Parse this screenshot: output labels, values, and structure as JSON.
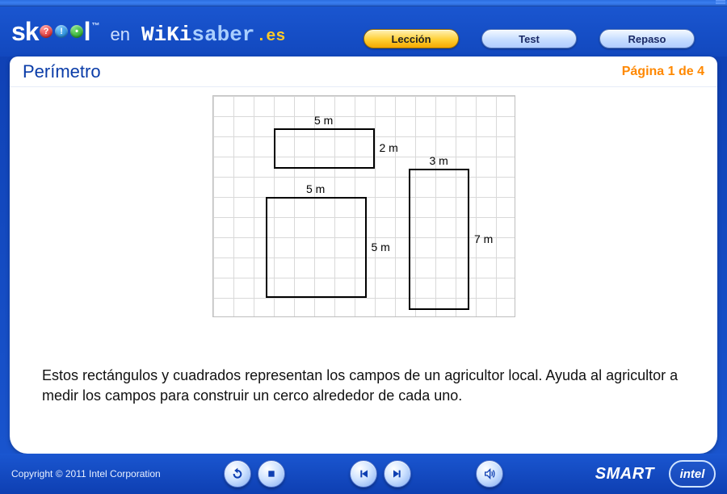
{
  "header": {
    "brand_sk": "sk",
    "brand_l_tail": "l",
    "brand_tm": "™",
    "brand_en": "en",
    "brand_wiki": "WiKi",
    "brand_saber": "saber",
    "brand_es": ".es",
    "dots": [
      "?",
      "!",
      "•"
    ]
  },
  "tabs": {
    "lesson": "Lección",
    "test": "Test",
    "review": "Repaso",
    "active": "lesson"
  },
  "page": {
    "title": "Perímetro",
    "indicator": "Página 1 de 4",
    "body": "Estos rectángulos y cuadrados representan los campos de un agricultor local. Ayuda al agricultor a medir los campos para construir un cerco alrededor de cada uno."
  },
  "figure": {
    "cell": 25,
    "cols": 15,
    "rows": 11,
    "grid_line_color": "#d9d9d9",
    "border_color": "#bfbfbf",
    "shape_border": "#000000",
    "shapes": {
      "rect1": {
        "col": 3,
        "row": 1.6,
        "w": 5,
        "h": 2,
        "label_top": "5 m",
        "label_right": "2 m"
      },
      "rect2": {
        "col": 9.7,
        "row": 3.6,
        "w": 3,
        "h": 7,
        "label_top": "3 m",
        "label_right": "7 m"
      },
      "square": {
        "col": 2.6,
        "row": 5,
        "w": 5,
        "h": 5,
        "label_top": "5 m",
        "label_right": "5 m"
      }
    }
  },
  "footer": {
    "copyright": "Copyright © 2011 Intel Corporation",
    "smart": "SMART",
    "intel": "intel"
  },
  "controls": {
    "reload": "reload",
    "stop": "stop",
    "prev": "prev",
    "next": "next",
    "audio": "audio"
  },
  "colors": {
    "header_bg_top": "#1a56d0",
    "header_bg_bottom": "#1248be",
    "title_color": "#0a3ca8",
    "page_ind_color": "#ff8800",
    "app_bg_top": "#0e3fb2"
  }
}
